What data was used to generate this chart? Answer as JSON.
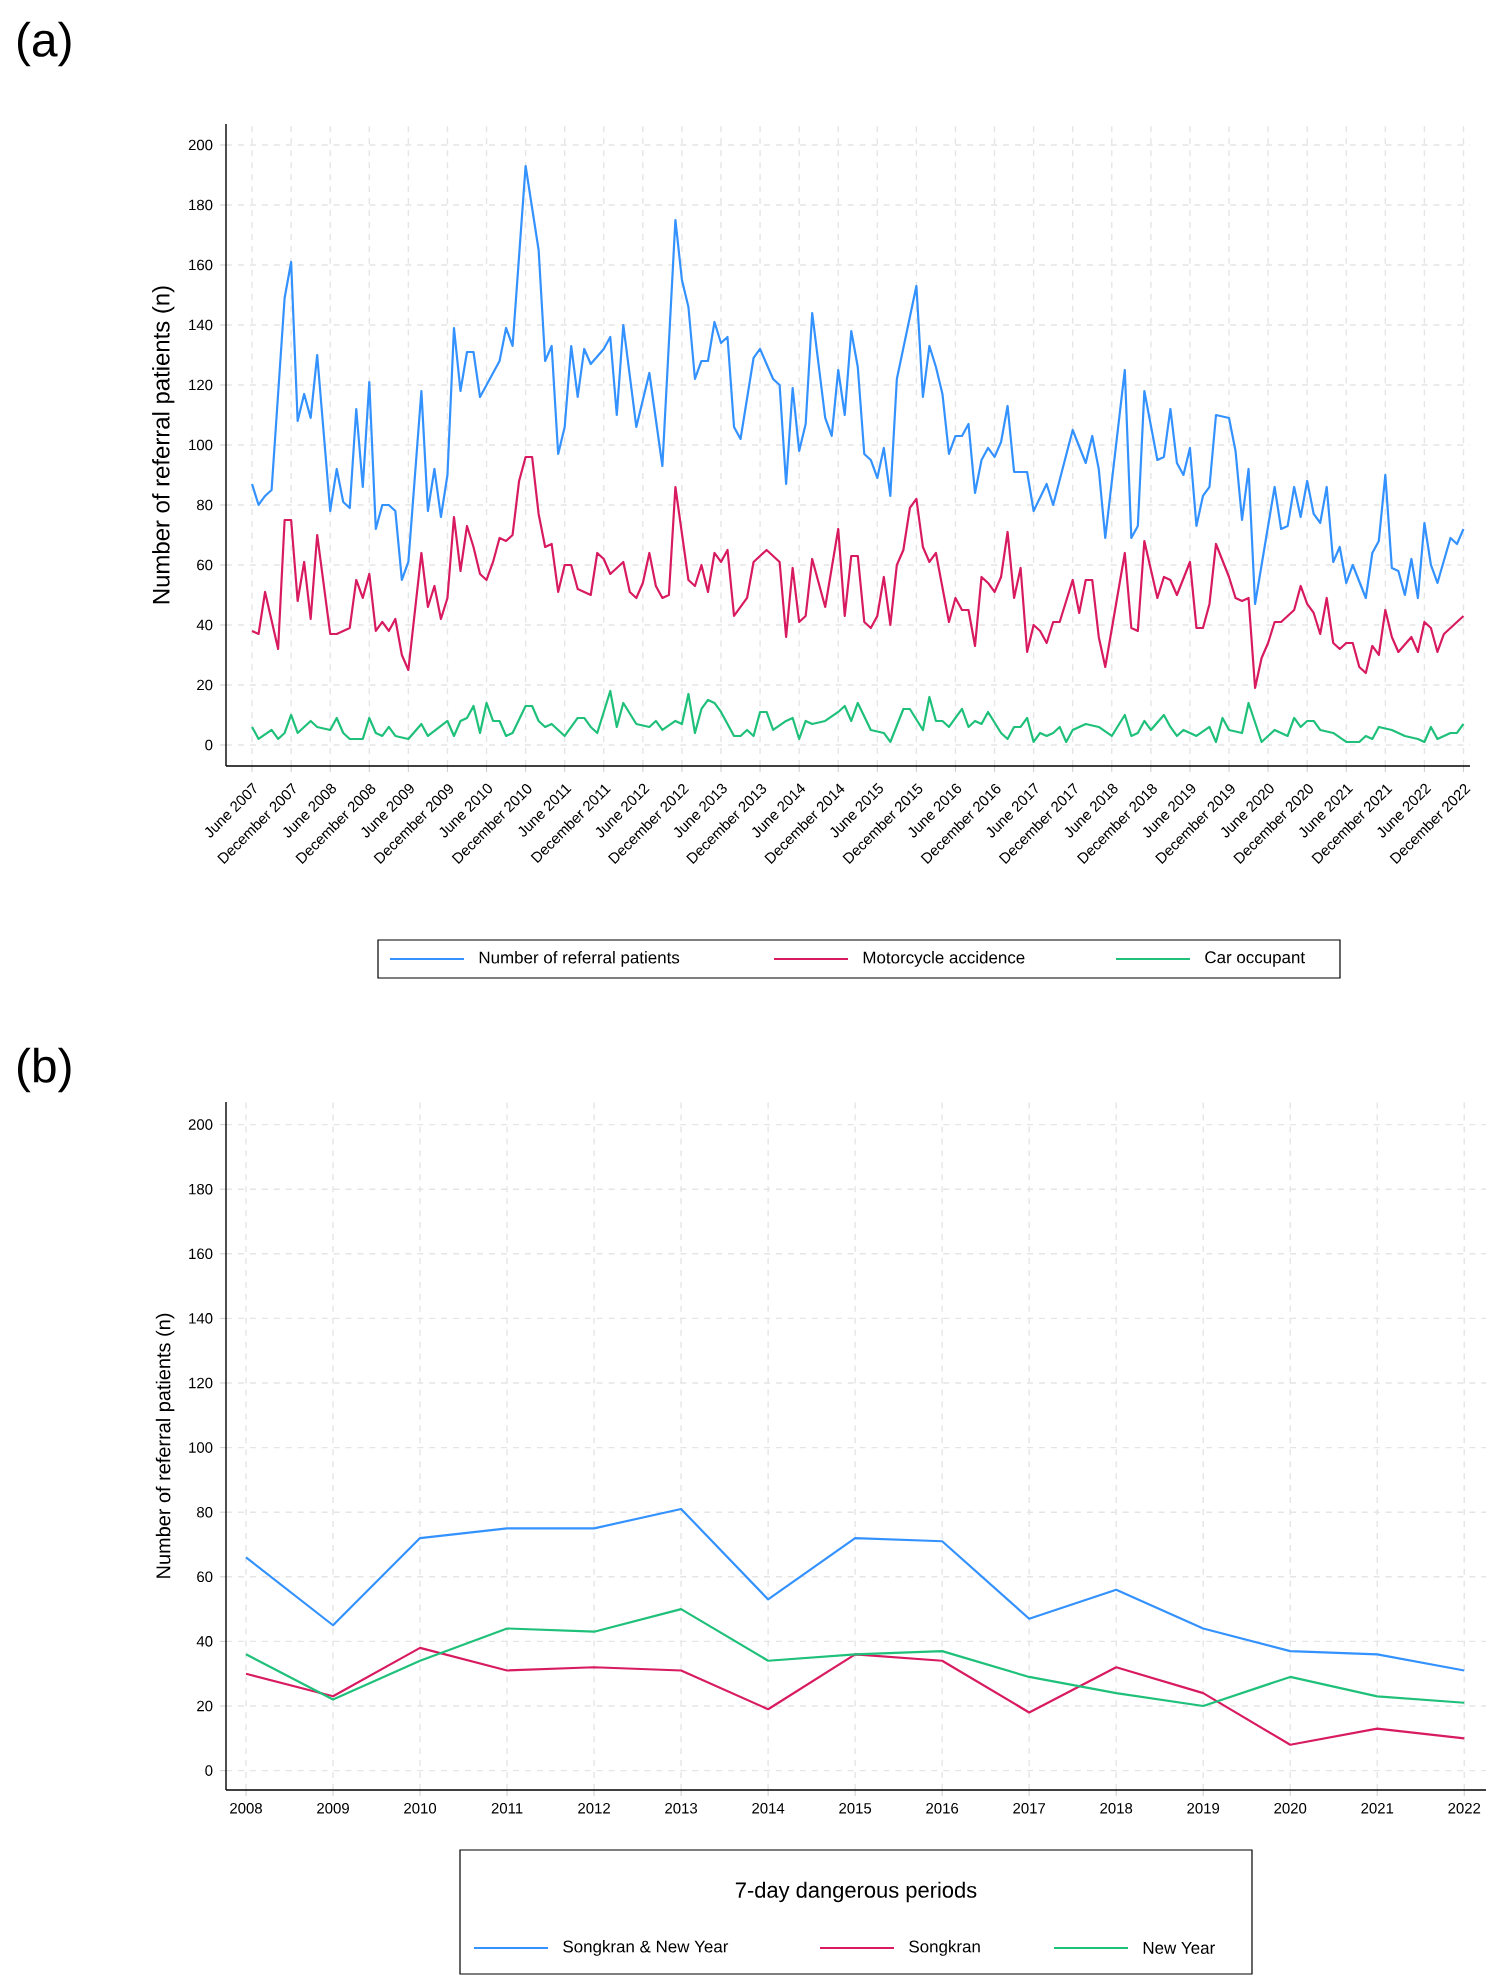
{
  "chart_data": [
    {
      "type": "line",
      "title": "(a)",
      "ylabel": "Number of referral patients (n)",
      "xlim": [
        "2007-02",
        "2023-01"
      ],
      "ylim": [
        -7,
        207
      ],
      "xticks": [
        {
          "value": "2007-06",
          "label": "June 2007"
        },
        {
          "value": "2007-12",
          "label": "December 2007"
        },
        {
          "value": "2008-06",
          "label": "June 2008"
        },
        {
          "value": "2008-12",
          "label": "December 2008"
        },
        {
          "value": "2009-06",
          "label": "June 2009"
        },
        {
          "value": "2009-12",
          "label": "December 2009"
        },
        {
          "value": "2010-06",
          "label": "June 2010"
        },
        {
          "value": "2010-12",
          "label": "December 2010"
        },
        {
          "value": "2011-06",
          "label": "June 2011"
        },
        {
          "value": "2011-12",
          "label": "December 2011"
        },
        {
          "value": "2012-06",
          "label": "June 2012"
        },
        {
          "value": "2012-12",
          "label": "December 2012"
        },
        {
          "value": "2013-06",
          "label": "June 2013"
        },
        {
          "value": "2013-12",
          "label": "December 2013"
        },
        {
          "value": "2014-06",
          "label": "June 2014"
        },
        {
          "value": "2014-12",
          "label": "December 2014"
        },
        {
          "value": "2015-06",
          "label": "June 2015"
        },
        {
          "value": "2015-12",
          "label": "December 2015"
        },
        {
          "value": "2016-06",
          "label": "June 2016"
        },
        {
          "value": "2016-12",
          "label": "December 2016"
        },
        {
          "value": "2017-06",
          "label": "June 2017"
        },
        {
          "value": "2017-12",
          "label": "December 2017"
        },
        {
          "value": "2018-06",
          "label": "June 2018"
        },
        {
          "value": "2018-12",
          "label": "December 2018"
        },
        {
          "value": "2019-06",
          "label": "June 2019"
        },
        {
          "value": "2019-12",
          "label": "December 2019"
        },
        {
          "value": "2020-06",
          "label": "June 2020"
        },
        {
          "value": "2020-12",
          "label": "December 2020"
        },
        {
          "value": "2021-06",
          "label": "June 2021"
        },
        {
          "value": "2021-12",
          "label": "December 2021"
        },
        {
          "value": "2022-06",
          "label": "June 2022"
        },
        {
          "value": "2022-12",
          "label": "December 2022"
        }
      ],
      "yticks": [
        0,
        20,
        40,
        60,
        80,
        100,
        120,
        140,
        160,
        180,
        200
      ],
      "grid": true,
      "legend": "bottom",
      "series": [
        {
          "name": "Number of referral patients",
          "color": "#3392ff",
          "x": [
            "2007-06",
            "2007-07",
            "2007-08",
            "2007-09",
            "2007-11",
            "2007-12",
            "2008-01",
            "2008-02",
            "2008-03",
            "2008-04",
            "2008-06",
            "2008-07",
            "2008-08",
            "2008-09",
            "2008-10",
            "2008-11",
            "2008-12",
            "2009-01",
            "2009-02",
            "2009-03",
            "2009-04",
            "2009-05",
            "2009-06",
            "2009-08",
            "2009-09",
            "2009-10",
            "2009-11",
            "2009-12",
            "2010-01",
            "2010-02",
            "2010-03",
            "2010-04",
            "2010-05",
            "2010-06",
            "2010-08",
            "2010-09",
            "2010-10",
            "2010-12",
            "2011-02",
            "2011-03",
            "2011-04",
            "2011-05",
            "2011-06",
            "2011-07",
            "2011-08",
            "2011-09",
            "2011-10",
            "2011-12",
            "2012-01",
            "2012-02",
            "2012-03",
            "2012-05",
            "2012-07",
            "2012-09",
            "2012-11",
            "2012-12",
            "2013-01",
            "2013-02",
            "2013-03",
            "2013-04",
            "2013-05",
            "2013-06",
            "2013-07",
            "2013-08",
            "2013-09",
            "2013-11",
            "2013-12",
            "2014-02",
            "2014-03",
            "2014-04",
            "2014-05",
            "2014-06",
            "2014-07",
            "2014-08",
            "2014-10",
            "2014-11",
            "2014-12",
            "2015-01",
            "2015-02",
            "2015-03",
            "2015-04",
            "2015-05",
            "2015-06",
            "2015-07",
            "2015-08",
            "2015-09",
            "2015-12",
            "2016-01",
            "2016-02",
            "2016-03",
            "2016-04",
            "2016-05",
            "2016-06",
            "2016-07",
            "2016-08",
            "2016-09",
            "2016-10",
            "2016-11",
            "2016-12",
            "2017-01",
            "2017-02",
            "2017-03",
            "2017-04",
            "2017-05",
            "2017-06",
            "2017-08",
            "2017-09",
            "2017-12",
            "2018-02",
            "2018-03",
            "2018-04",
            "2018-05",
            "2018-08",
            "2018-09",
            "2018-10",
            "2018-11",
            "2019-01",
            "2019-02",
            "2019-03",
            "2019-04",
            "2019-05",
            "2019-06",
            "2019-07",
            "2019-08",
            "2019-09",
            "2019-10",
            "2019-12",
            "2020-01",
            "2020-02",
            "2020-03",
            "2020-04",
            "2020-07",
            "2020-08",
            "2020-09",
            "2020-10",
            "2020-11",
            "2020-12",
            "2021-01",
            "2021-02",
            "2021-03",
            "2021-04",
            "2021-05",
            "2021-06",
            "2021-07",
            "2021-09",
            "2021-10",
            "2021-11",
            "2021-12",
            "2022-01",
            "2022-02",
            "2022-03",
            "2022-04",
            "2022-05",
            "2022-06",
            "2022-07",
            "2022-08",
            "2022-10",
            "2022-11",
            "2022-12"
          ],
          "values": [
            87,
            80,
            83,
            85,
            149,
            161,
            108,
            117,
            109,
            130,
            78,
            92,
            81,
            79,
            112,
            86,
            121,
            72,
            80,
            80,
            78,
            55,
            61,
            118,
            78,
            92,
            76,
            90,
            139,
            118,
            131,
            131,
            116,
            120,
            128,
            139,
            133,
            193,
            165,
            128,
            133,
            97,
            106,
            133,
            116,
            132,
            127,
            132,
            136,
            110,
            140,
            106,
            124,
            93,
            175,
            155,
            146,
            122,
            128,
            128,
            141,
            134,
            136,
            106,
            102,
            129,
            132,
            122,
            120,
            87,
            119,
            98,
            107,
            144,
            109,
            103,
            125,
            110,
            138,
            126,
            97,
            95,
            89,
            99,
            83,
            122,
            153,
            116,
            133,
            126,
            117,
            97,
            103,
            103,
            107,
            84,
            95,
            99,
            96,
            101,
            113,
            91,
            91,
            91,
            78,
            87,
            80,
            105,
            94,
            103,
            92,
            69,
            125,
            69,
            73,
            118,
            95,
            96,
            112,
            94,
            90,
            99,
            73,
            83,
            86,
            110,
            109,
            98,
            75,
            92,
            47,
            86,
            72,
            73,
            86,
            76,
            88,
            77,
            74,
            86,
            61,
            66,
            54,
            60,
            49,
            64,
            68,
            90,
            59,
            58,
            50,
            62,
            49,
            74,
            60,
            54,
            69,
            67,
            72
          ]
        },
        {
          "name": "Motorcycle accidence",
          "color": "#d81b60",
          "x": [
            "2007-06",
            "2007-07",
            "2007-08",
            "2007-10",
            "2007-11",
            "2007-12",
            "2008-01",
            "2008-02",
            "2008-03",
            "2008-04",
            "2008-06",
            "2008-07",
            "2008-09",
            "2008-10",
            "2008-11",
            "2008-12",
            "2009-01",
            "2009-02",
            "2009-03",
            "2009-04",
            "2009-05",
            "2009-06",
            "2009-08",
            "2009-09",
            "2009-10",
            "2009-11",
            "2009-12",
            "2010-01",
            "2010-02",
            "2010-03",
            "2010-04",
            "2010-05",
            "2010-06",
            "2010-07",
            "2010-08",
            "2010-09",
            "2010-10",
            "2010-11",
            "2010-12",
            "2011-01",
            "2011-02",
            "2011-03",
            "2011-04",
            "2011-05",
            "2011-06",
            "2011-07",
            "2011-08",
            "2011-10",
            "2011-11",
            "2011-12",
            "2012-01",
            "2012-03",
            "2012-04",
            "2012-05",
            "2012-06",
            "2012-07",
            "2012-08",
            "2012-09",
            "2012-10",
            "2012-11",
            "2013-01",
            "2013-02",
            "2013-03",
            "2013-04",
            "2013-05",
            "2013-06",
            "2013-07",
            "2013-08",
            "2013-10",
            "2013-11",
            "2014-01",
            "2014-03",
            "2014-04",
            "2014-05",
            "2014-06",
            "2014-07",
            "2014-08",
            "2014-10",
            "2014-12",
            "2015-01",
            "2015-02",
            "2015-03",
            "2015-04",
            "2015-05",
            "2015-06",
            "2015-07",
            "2015-08",
            "2015-09",
            "2015-10",
            "2015-11",
            "2015-12",
            "2016-01",
            "2016-02",
            "2016-03",
            "2016-05",
            "2016-06",
            "2016-07",
            "2016-08",
            "2016-09",
            "2016-10",
            "2016-11",
            "2016-12",
            "2017-01",
            "2017-02",
            "2017-03",
            "2017-04",
            "2017-05",
            "2017-06",
            "2017-07",
            "2017-08",
            "2017-09",
            "2017-10",
            "2017-12",
            "2018-01",
            "2018-02",
            "2018-03",
            "2018-04",
            "2018-05",
            "2018-08",
            "2018-09",
            "2018-10",
            "2018-11",
            "2019-01",
            "2019-02",
            "2019-03",
            "2019-04",
            "2019-06",
            "2019-07",
            "2019-08",
            "2019-09",
            "2019-10",
            "2019-12",
            "2020-01",
            "2020-02",
            "2020-03",
            "2020-04",
            "2020-05",
            "2020-06",
            "2020-07",
            "2020-08",
            "2020-09",
            "2020-10",
            "2020-11",
            "2020-12",
            "2021-01",
            "2021-02",
            "2021-03",
            "2021-04",
            "2021-05",
            "2021-06",
            "2021-07",
            "2021-08",
            "2021-09",
            "2021-10",
            "2021-11",
            "2021-12",
            "2022-01",
            "2022-02",
            "2022-04",
            "2022-05",
            "2022-06",
            "2022-07",
            "2022-08",
            "2022-09",
            "2022-11",
            "2022-12"
          ],
          "values": [
            38,
            37,
            51,
            32,
            75,
            75,
            48,
            61,
            42,
            70,
            37,
            37,
            39,
            55,
            49,
            57,
            38,
            41,
            38,
            42,
            30,
            25,
            64,
            46,
            53,
            42,
            49,
            76,
            58,
            73,
            66,
            57,
            55,
            61,
            69,
            68,
            70,
            88,
            96,
            96,
            77,
            66,
            67,
            51,
            60,
            60,
            52,
            50,
            64,
            62,
            57,
            61,
            51,
            49,
            54,
            64,
            53,
            49,
            50,
            86,
            55,
            53,
            60,
            51,
            64,
            61,
            65,
            43,
            49,
            61,
            65,
            61,
            36,
            59,
            41,
            43,
            62,
            46,
            72,
            43,
            63,
            63,
            41,
            39,
            43,
            56,
            40,
            60,
            65,
            79,
            82,
            66,
            61,
            64,
            41,
            49,
            45,
            45,
            33,
            56,
            54,
            51,
            56,
            71,
            49,
            59,
            31,
            40,
            38,
            34,
            41,
            41,
            55,
            44,
            55,
            55,
            36,
            26,
            64,
            39,
            38,
            68,
            49,
            56,
            55,
            50,
            61,
            39,
            39,
            47,
            67,
            56,
            49,
            48,
            49,
            19,
            29,
            34,
            41,
            41,
            43,
            45,
            53,
            47,
            44,
            37,
            49,
            34,
            32,
            34,
            34,
            26,
            24,
            33,
            30,
            45,
            36,
            31,
            36,
            31,
            41,
            39,
            31,
            37,
            41,
            43
          ]
        },
        {
          "name": "Car occupant",
          "color": "#1fc07a",
          "x": [
            "2007-06",
            "2007-07",
            "2007-09",
            "2007-10",
            "2007-11",
            "2007-12",
            "2008-01",
            "2008-03",
            "2008-04",
            "2008-06",
            "2008-07",
            "2008-08",
            "2008-09",
            "2008-11",
            "2008-12",
            "2009-01",
            "2009-02",
            "2009-03",
            "2009-04",
            "2009-06",
            "2009-08",
            "2009-09",
            "2009-12",
            "2010-01",
            "2010-02",
            "2010-03",
            "2010-04",
            "2010-05",
            "2010-06",
            "2010-07",
            "2010-08",
            "2010-09",
            "2010-10",
            "2010-12",
            "2011-01",
            "2011-02",
            "2011-03",
            "2011-04",
            "2011-06",
            "2011-08",
            "2011-09",
            "2011-10",
            "2011-11",
            "2012-01",
            "2012-02",
            "2012-03",
            "2012-05",
            "2012-07",
            "2012-08",
            "2012-09",
            "2012-11",
            "2012-12",
            "2013-01",
            "2013-02",
            "2013-03",
            "2013-04",
            "2013-05",
            "2013-06",
            "2013-08",
            "2013-09",
            "2013-10",
            "2013-11",
            "2013-12",
            "2014-01",
            "2014-02",
            "2014-04",
            "2014-05",
            "2014-06",
            "2014-07",
            "2014-08",
            "2014-10",
            "2014-12",
            "2015-01",
            "2015-02",
            "2015-03",
            "2015-05",
            "2015-07",
            "2015-08",
            "2015-10",
            "2015-11",
            "2016-01",
            "2016-02",
            "2016-03",
            "2016-04",
            "2016-05",
            "2016-07",
            "2016-08",
            "2016-09",
            "2016-10",
            "2016-11",
            "2017-01",
            "2017-02",
            "2017-03",
            "2017-04",
            "2017-05",
            "2017-06",
            "2017-07",
            "2017-08",
            "2017-09",
            "2017-10",
            "2017-11",
            "2017-12",
            "2018-02",
            "2018-04",
            "2018-06",
            "2018-08",
            "2018-09",
            "2018-10",
            "2018-11",
            "2018-12",
            "2019-02",
            "2019-03",
            "2019-04",
            "2019-05",
            "2019-07",
            "2019-09",
            "2019-10",
            "2019-11",
            "2019-12",
            "2020-02",
            "2020-03",
            "2020-05",
            "2020-07",
            "2020-09",
            "2020-10",
            "2020-11",
            "2020-12",
            "2021-01",
            "2021-02",
            "2021-04",
            "2021-06",
            "2021-08",
            "2021-09",
            "2021-10",
            "2021-11",
            "2022-01",
            "2022-03",
            "2022-05",
            "2022-06",
            "2022-07",
            "2022-08",
            "2022-10",
            "2022-11",
            "2022-12"
          ],
          "values": [
            6,
            2,
            5,
            2,
            4,
            10,
            4,
            8,
            6,
            5,
            9,
            4,
            2,
            2,
            9,
            4,
            3,
            6,
            3,
            2,
            7,
            3,
            8,
            3,
            8,
            9,
            13,
            4,
            14,
            8,
            8,
            3,
            4,
            13,
            13,
            8,
            6,
            7,
            3,
            9,
            9,
            6,
            4,
            18,
            6,
            14,
            7,
            6,
            8,
            5,
            8,
            7,
            17,
            4,
            12,
            15,
            14,
            11,
            3,
            3,
            5,
            3,
            11,
            11,
            5,
            8,
            9,
            2,
            8,
            7,
            8,
            11,
            13,
            8,
            14,
            5,
            4,
            1,
            12,
            12,
            5,
            16,
            8,
            8,
            6,
            12,
            6,
            8,
            7,
            11,
            4,
            2,
            6,
            6,
            9,
            1,
            4,
            3,
            4,
            6,
            1,
            5,
            7,
            6,
            3,
            10,
            3,
            4,
            8,
            5,
            10,
            6,
            3,
            5,
            3,
            6,
            1,
            9,
            5,
            4,
            14,
            1,
            5,
            3,
            9,
            6,
            8,
            8,
            5,
            4,
            1,
            1,
            3,
            2,
            6,
            5,
            3,
            2,
            1,
            6,
            2,
            4,
            4,
            7
          ]
        }
      ]
    },
    {
      "type": "line",
      "title": "(b)",
      "ylabel": "Number of referral patients (n)",
      "legend_title": "7-day dangerous periods",
      "x": [
        2008,
        2009,
        2010,
        2011,
        2012,
        2013,
        2014,
        2015,
        2016,
        2017,
        2018,
        2019,
        2020,
        2021,
        2022
      ],
      "xlim": [
        2007.77,
        2022.25
      ],
      "ylim": [
        -6,
        207
      ],
      "xticks": [
        2008,
        2009,
        2010,
        2011,
        2012,
        2013,
        2014,
        2015,
        2016,
        2017,
        2018,
        2019,
        2020,
        2021,
        2022
      ],
      "yticks": [
        0,
        20,
        40,
        60,
        80,
        100,
        120,
        140,
        160,
        180,
        200
      ],
      "grid": true,
      "legend": "bottom",
      "series": [
        {
          "name": "Songkran & New Year",
          "color": "#3392ff",
          "values": [
            66,
            45,
            72,
            75,
            75,
            81,
            53,
            72,
            71,
            47,
            56,
            44,
            37,
            36,
            31
          ]
        },
        {
          "name": "Songkran",
          "color": "#d81b60",
          "values": [
            30,
            23,
            38,
            31,
            32,
            31,
            19,
            36,
            34,
            18,
            32,
            24,
            8,
            13,
            10
          ]
        },
        {
          "name": "New Year",
          "color": "#1fc07a",
          "values": [
            36,
            22,
            34,
            44,
            43,
            50,
            34,
            36,
            37,
            29,
            24,
            20,
            29,
            23,
            21
          ]
        }
      ]
    }
  ]
}
